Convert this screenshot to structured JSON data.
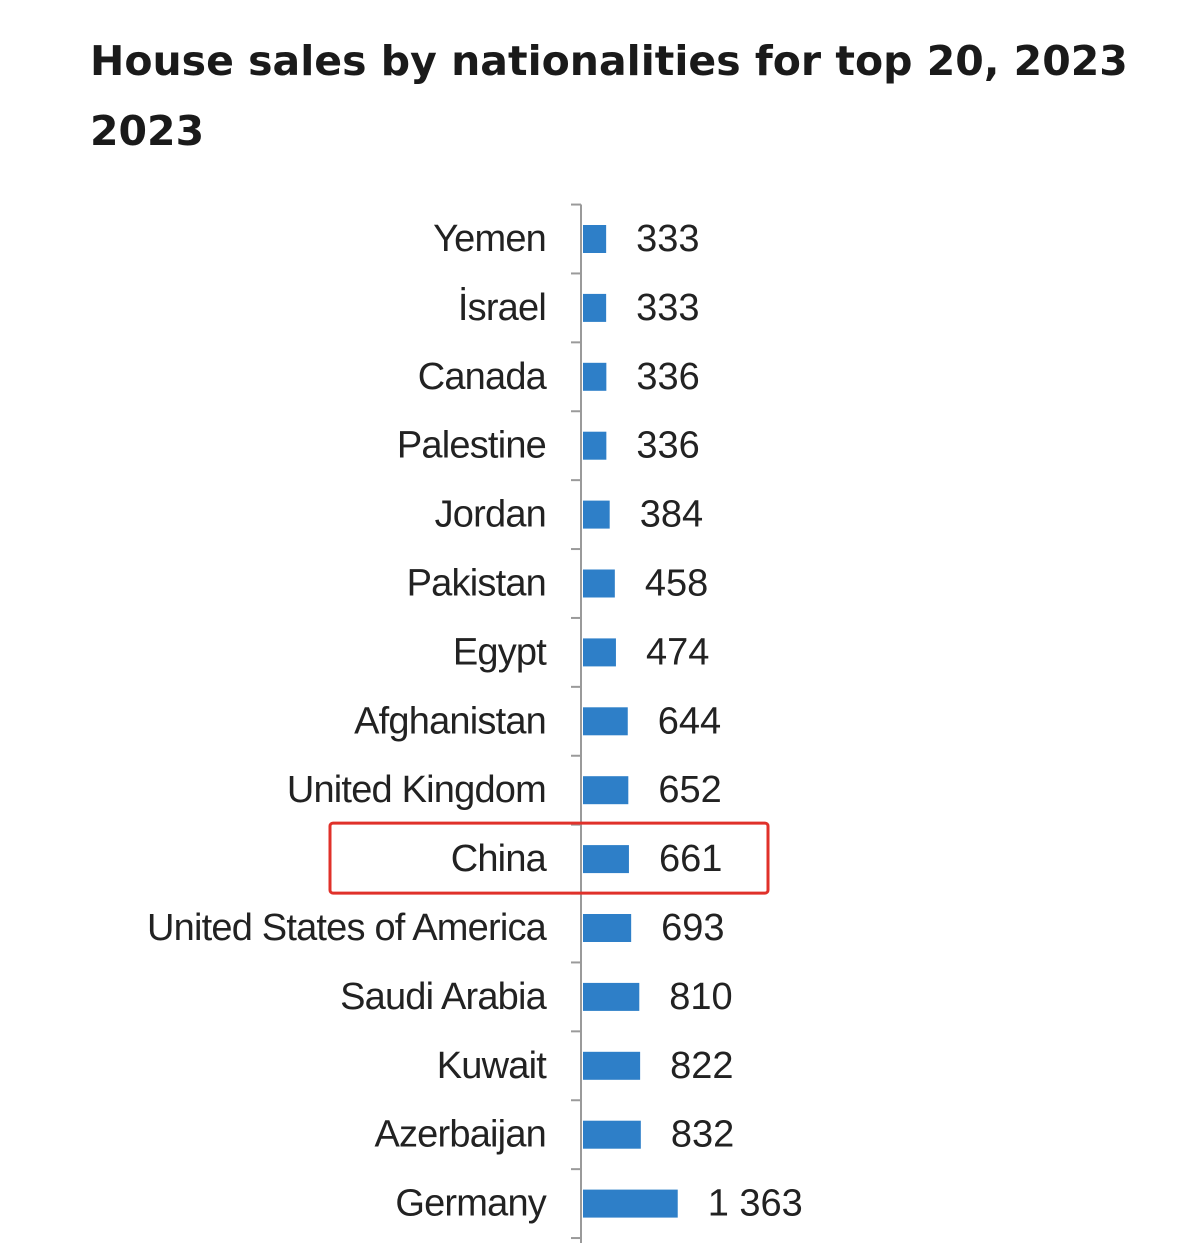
{
  "chart_data": {
    "type": "bar",
    "orientation": "horizontal",
    "title_lines": [
      "House sales by nationalities for top 20, 2023",
      "2023"
    ],
    "categories": [
      "Yemen",
      "İsrael",
      "Canada",
      "Palestine",
      "Jordan",
      "Pakistan",
      "Egypt",
      "Afghanistan",
      "United Kingdom",
      "China",
      "United States of America",
      "Saudi Arabia",
      "Kuwait",
      "Azerbaijan",
      "Germany"
    ],
    "values": [
      333,
      333,
      336,
      336,
      384,
      458,
      474,
      644,
      652,
      661,
      693,
      810,
      822,
      832,
      1363
    ],
    "value_labels": [
      "333",
      "333",
      "336",
      "336",
      "384",
      "458",
      "474",
      "644",
      "652",
      "661",
      "693",
      "810",
      "822",
      "832",
      "1 363"
    ],
    "highlight": "China",
    "bar_color": "#2e7fc8",
    "highlight_color": "#e0312a",
    "grid": false,
    "legend": "none"
  }
}
